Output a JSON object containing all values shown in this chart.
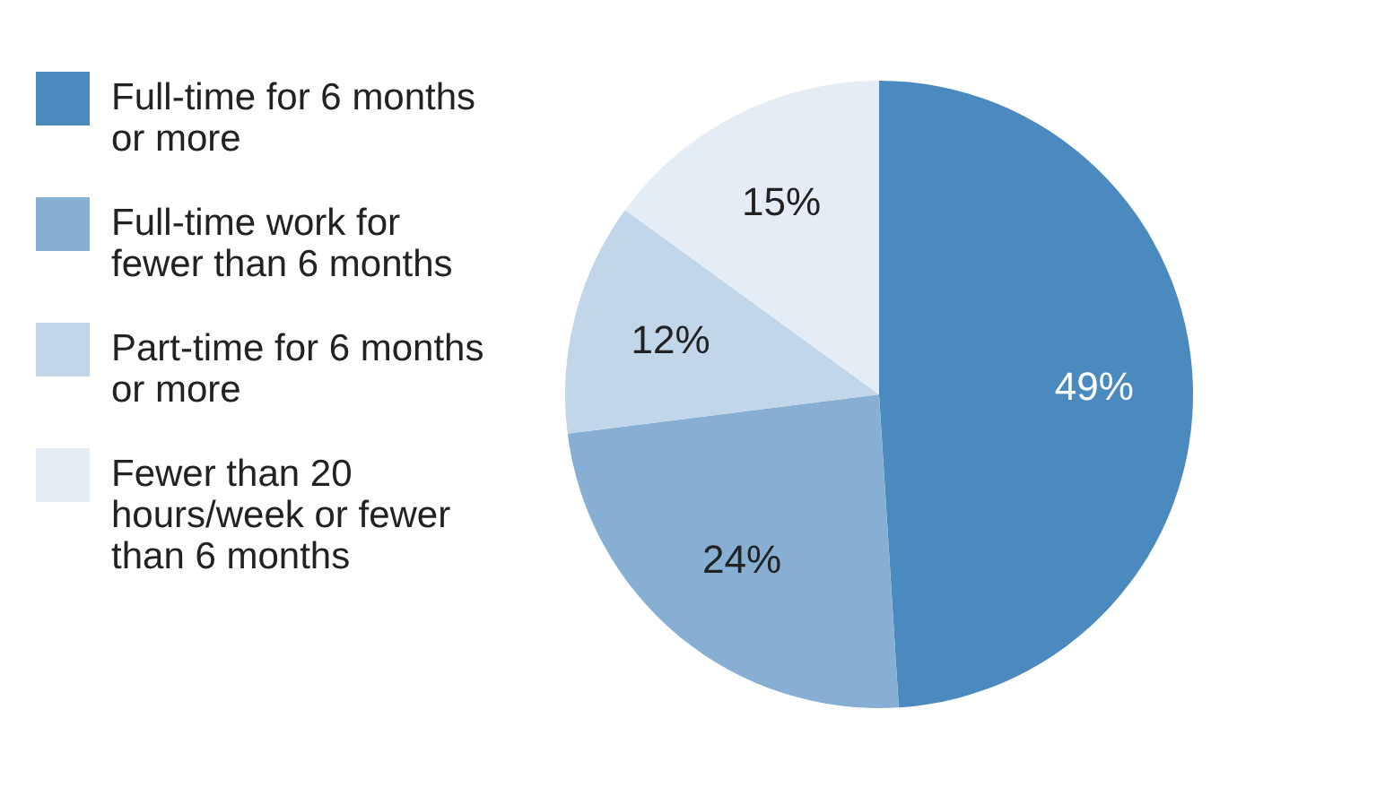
{
  "chart_data": {
    "type": "pie",
    "categories": [
      "Full-time for 6 months or more",
      "Full-time work for fewer than 6 months",
      "Part-time for 6 months or more",
      "Fewer than 20 hours/week or fewer than 6 months"
    ],
    "values": [
      49,
      24,
      12,
      15
    ],
    "colors": [
      "#4a8abe",
      "#86afd3",
      "#c1d6e8",
      "#e4edf5"
    ],
    "value_labels": [
      "49%",
      "24%",
      "12%",
      "15%"
    ],
    "legend": "left"
  }
}
